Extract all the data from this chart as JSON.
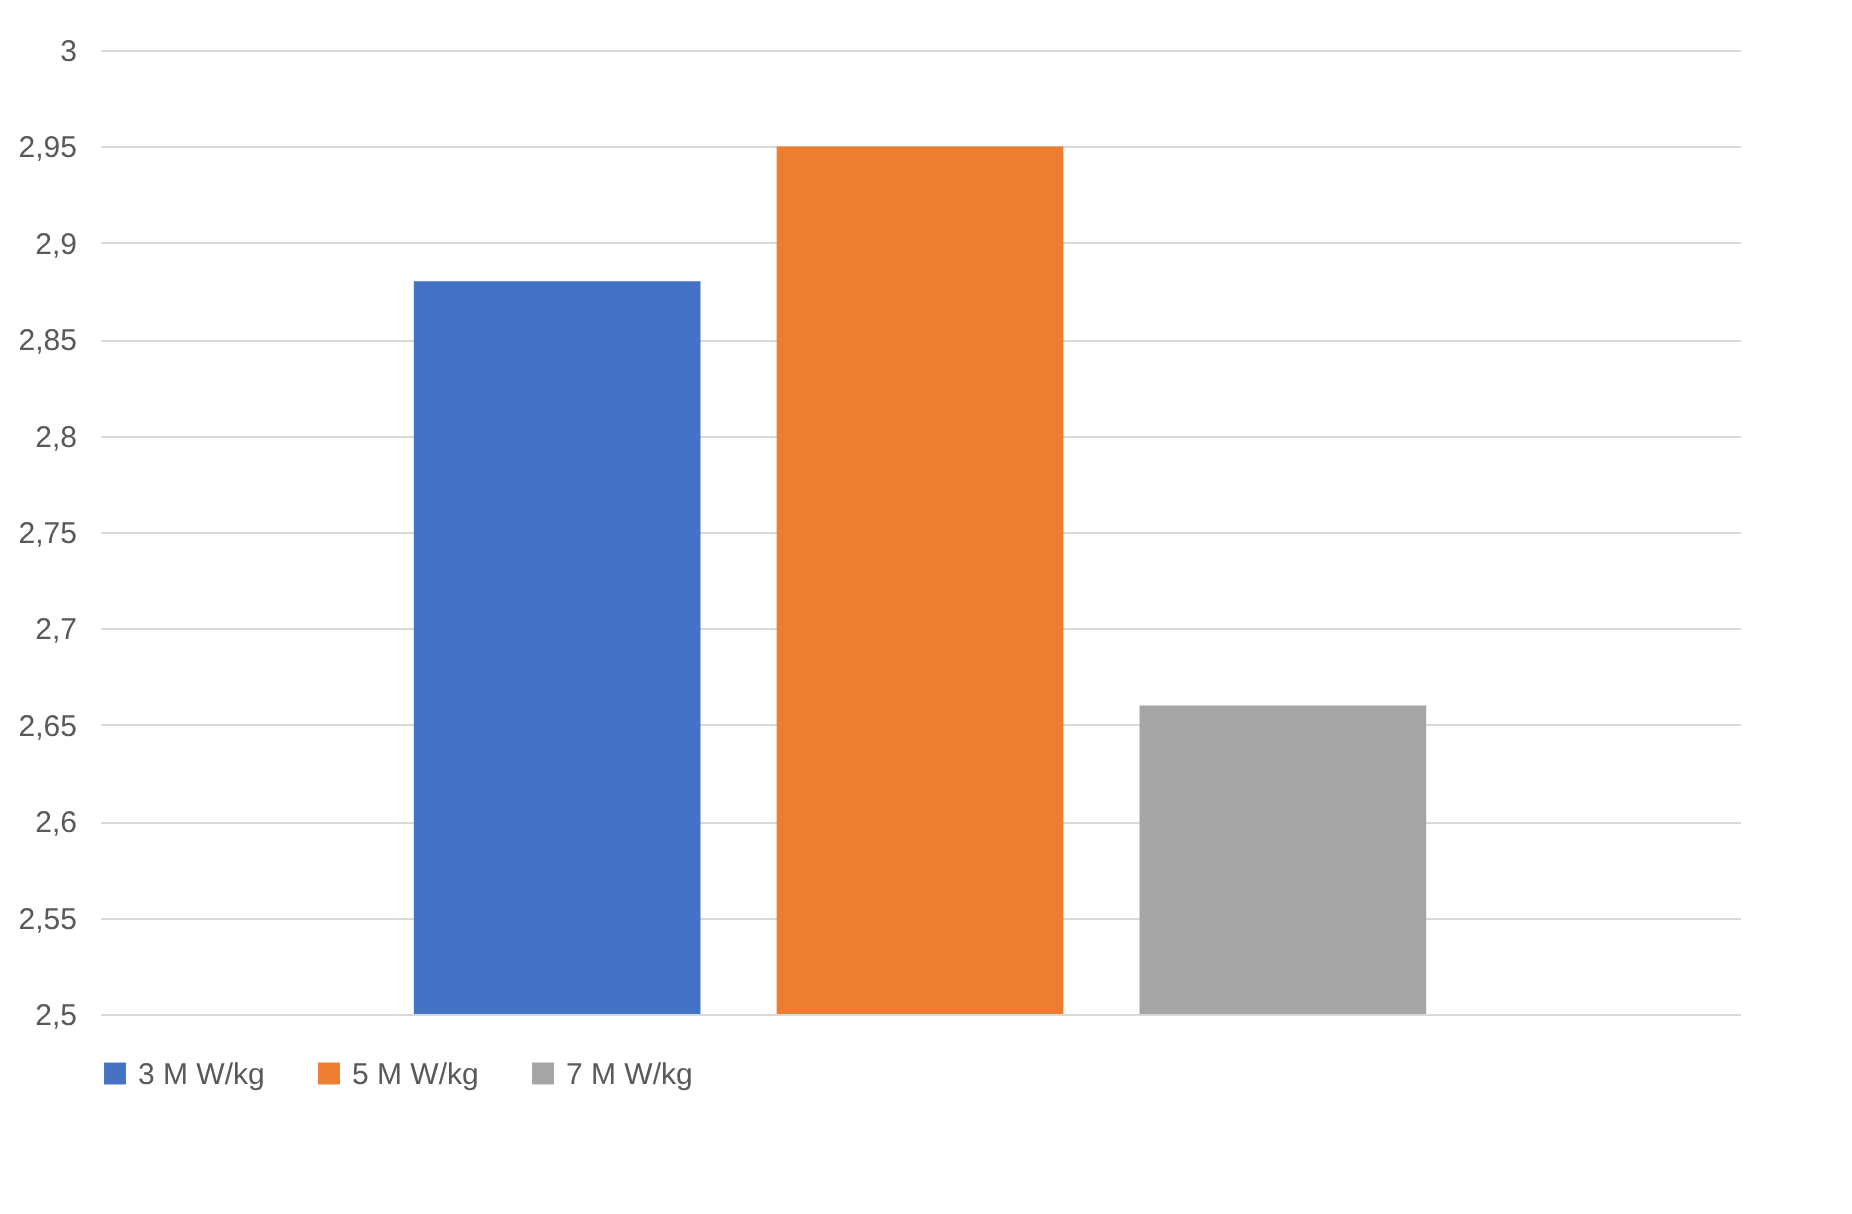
{
  "chart_data": {
    "type": "bar",
    "categories": [
      null
    ],
    "series": [
      {
        "name": "3 M W/kg",
        "color": "#4472c4",
        "values": [
          2.88
        ]
      },
      {
        "name": "5 M W/kg",
        "color": "#ed7d31",
        "values": [
          2.95
        ]
      },
      {
        "name": "7 M W/kg",
        "color": "#a5a5a5",
        "values": [
          2.66
        ]
      }
    ],
    "ylim": [
      2.5,
      3
    ],
    "yticks": [
      {
        "value": 2.5,
        "label": "2,5"
      },
      {
        "value": 2.55,
        "label": "2,55"
      },
      {
        "value": 2.6,
        "label": "2,6"
      },
      {
        "value": 2.65,
        "label": "2,65"
      },
      {
        "value": 2.7,
        "label": "2,7"
      },
      {
        "value": 2.75,
        "label": "2,75"
      },
      {
        "value": 2.8,
        "label": "2,8"
      },
      {
        "value": 2.85,
        "label": "2,85"
      },
      {
        "value": 2.9,
        "label": "2,9"
      },
      {
        "value": 2.95,
        "label": "2,95"
      },
      3
    ],
    "grid": "y",
    "legend": "bottom"
  }
}
